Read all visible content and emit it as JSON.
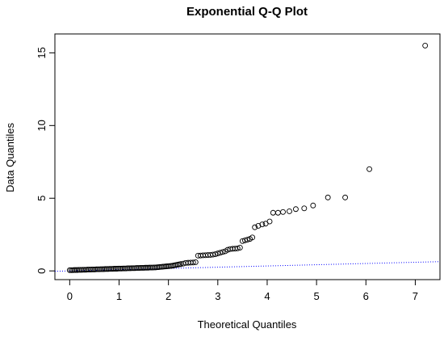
{
  "chart_data": {
    "type": "scatter",
    "title": "Exponential Q-Q Plot",
    "xlabel": "Theoretical Quantiles",
    "ylabel": "Data Quantiles",
    "xlim": [
      -0.3,
      7.5
    ],
    "ylim": [
      -0.6,
      16.3
    ],
    "x_ticks": [
      0,
      1,
      2,
      3,
      4,
      5,
      6,
      7
    ],
    "y_ticks": [
      0,
      5,
      10,
      15
    ],
    "grid": false,
    "legend": "none",
    "colors": {
      "points": "#000000",
      "reference_line": "#0000ff"
    },
    "reference_line": {
      "style": "dotted",
      "intercept": 0,
      "slope": 0.085
    },
    "series": [
      {
        "marker": "open-circle",
        "points": [
          [
            0.0,
            0.05
          ],
          [
            0.03,
            0.05
          ],
          [
            0.06,
            0.05
          ],
          [
            0.09,
            0.06
          ],
          [
            0.12,
            0.06
          ],
          [
            0.15,
            0.06
          ],
          [
            0.18,
            0.07
          ],
          [
            0.21,
            0.07
          ],
          [
            0.24,
            0.07
          ],
          [
            0.27,
            0.08
          ],
          [
            0.3,
            0.08
          ],
          [
            0.33,
            0.08
          ],
          [
            0.36,
            0.09
          ],
          [
            0.39,
            0.09
          ],
          [
            0.42,
            0.09
          ],
          [
            0.45,
            0.1
          ],
          [
            0.48,
            0.1
          ],
          [
            0.51,
            0.1
          ],
          [
            0.54,
            0.11
          ],
          [
            0.57,
            0.11
          ],
          [
            0.6,
            0.11
          ],
          [
            0.63,
            0.12
          ],
          [
            0.66,
            0.12
          ],
          [
            0.69,
            0.12
          ],
          [
            0.72,
            0.13
          ],
          [
            0.75,
            0.13
          ],
          [
            0.78,
            0.13
          ],
          [
            0.81,
            0.14
          ],
          [
            0.84,
            0.14
          ],
          [
            0.87,
            0.14
          ],
          [
            0.9,
            0.15
          ],
          [
            0.93,
            0.15
          ],
          [
            0.96,
            0.15
          ],
          [
            0.99,
            0.16
          ],
          [
            1.02,
            0.16
          ],
          [
            1.05,
            0.16
          ],
          [
            1.08,
            0.17
          ],
          [
            1.11,
            0.17
          ],
          [
            1.14,
            0.17
          ],
          [
            1.17,
            0.18
          ],
          [
            1.2,
            0.18
          ],
          [
            1.23,
            0.18
          ],
          [
            1.26,
            0.19
          ],
          [
            1.29,
            0.19
          ],
          [
            1.32,
            0.19
          ],
          [
            1.35,
            0.2
          ],
          [
            1.38,
            0.2
          ],
          [
            1.41,
            0.2
          ],
          [
            1.44,
            0.21
          ],
          [
            1.47,
            0.21
          ],
          [
            1.5,
            0.21
          ],
          [
            1.53,
            0.22
          ],
          [
            1.56,
            0.22
          ],
          [
            1.59,
            0.22
          ],
          [
            1.62,
            0.23
          ],
          [
            1.65,
            0.23
          ],
          [
            1.68,
            0.23
          ],
          [
            1.71,
            0.24
          ],
          [
            1.74,
            0.24
          ],
          [
            1.77,
            0.25
          ],
          [
            1.8,
            0.26
          ],
          [
            1.83,
            0.27
          ],
          [
            1.86,
            0.28
          ],
          [
            1.89,
            0.29
          ],
          [
            1.92,
            0.3
          ],
          [
            1.95,
            0.31
          ],
          [
            1.98,
            0.32
          ],
          [
            2.01,
            0.33
          ],
          [
            2.04,
            0.34
          ],
          [
            2.07,
            0.35
          ],
          [
            2.1,
            0.37
          ],
          [
            2.13,
            0.39
          ],
          [
            2.16,
            0.41
          ],
          [
            2.19,
            0.43
          ],
          [
            2.22,
            0.45
          ],
          [
            2.25,
            0.47
          ],
          [
            2.3,
            0.5
          ],
          [
            2.35,
            0.55
          ],
          [
            2.4,
            0.56
          ],
          [
            2.45,
            0.57
          ],
          [
            2.5,
            0.58
          ],
          [
            2.55,
            0.6
          ],
          [
            2.6,
            1.05
          ],
          [
            2.65,
            1.06
          ],
          [
            2.7,
            1.07
          ],
          [
            2.75,
            1.08
          ],
          [
            2.8,
            1.09
          ],
          [
            2.85,
            1.1
          ],
          [
            2.9,
            1.12
          ],
          [
            2.95,
            1.15
          ],
          [
            3.0,
            1.2
          ],
          [
            3.05,
            1.25
          ],
          [
            3.1,
            1.3
          ],
          [
            3.15,
            1.35
          ],
          [
            3.2,
            1.45
          ],
          [
            3.25,
            1.5
          ],
          [
            3.3,
            1.52
          ],
          [
            3.35,
            1.53
          ],
          [
            3.4,
            1.55
          ],
          [
            3.45,
            1.6
          ],
          [
            3.5,
            2.05
          ],
          [
            3.55,
            2.1
          ],
          [
            3.6,
            2.15
          ],
          [
            3.65,
            2.2
          ],
          [
            3.7,
            2.3
          ],
          [
            3.75,
            3.0
          ],
          [
            3.82,
            3.1
          ],
          [
            3.9,
            3.2
          ],
          [
            3.97,
            3.25
          ],
          [
            4.05,
            3.4
          ],
          [
            4.12,
            4.0
          ],
          [
            4.22,
            4.0
          ],
          [
            4.32,
            4.05
          ],
          [
            4.45,
            4.1
          ],
          [
            4.58,
            4.25
          ],
          [
            4.75,
            4.3
          ],
          [
            4.93,
            4.5
          ],
          [
            5.23,
            5.05
          ],
          [
            5.58,
            5.05
          ],
          [
            6.07,
            7.0
          ],
          [
            7.2,
            15.5
          ]
        ]
      }
    ]
  }
}
